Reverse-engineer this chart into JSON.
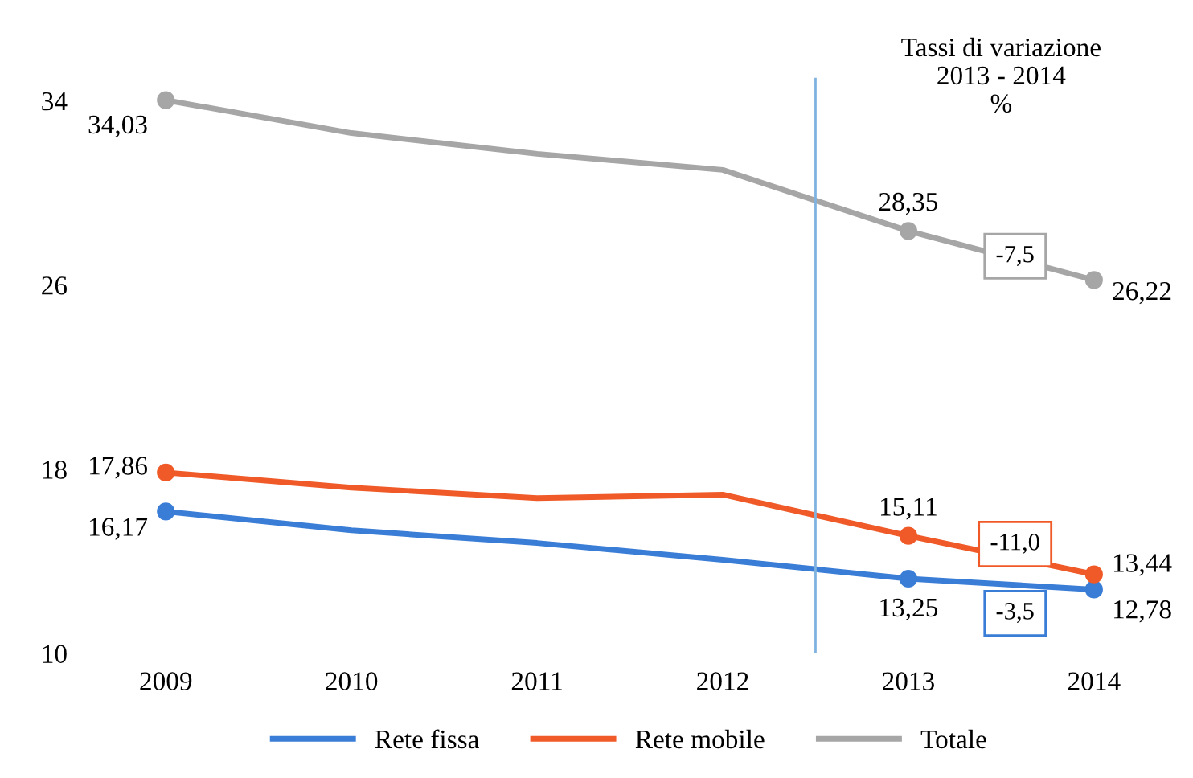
{
  "chart_data": {
    "type": "line",
    "x": [
      2009,
      2010,
      2011,
      2012,
      2013,
      2014
    ],
    "xlim": [
      2009,
      2014
    ],
    "xticks": [
      2009,
      2010,
      2011,
      2012,
      2013,
      2014
    ],
    "ylim": [
      10,
      35
    ],
    "yticks": [
      10,
      18,
      26,
      34
    ],
    "series": [
      {
        "name": "Rete fissa",
        "color": "#3a7dd6",
        "values": [
          16.17,
          15.35,
          14.8,
          14.07,
          13.25,
          12.78
        ],
        "value_labels": [
          "16,17",
          null,
          null,
          null,
          "13,25",
          "12,78"
        ]
      },
      {
        "name": "Rete mobile",
        "color": "#f05a28",
        "values": [
          17.86,
          17.2,
          16.75,
          16.9,
          15.11,
          13.44
        ],
        "value_labels": [
          "17,86",
          null,
          null,
          null,
          "15,11",
          "13,44"
        ]
      },
      {
        "name": "Totale",
        "color": "#a6a6a6",
        "values": [
          34.03,
          32.6,
          31.7,
          31.0,
          28.35,
          26.22
        ],
        "value_labels": [
          "34,03",
          null,
          null,
          null,
          "28,35",
          "26,22"
        ]
      }
    ],
    "marker": "circle",
    "ref_lines": [
      {
        "axis": "x",
        "value": 2012.5,
        "color": "#7fb2df"
      }
    ],
    "annotations": [
      "Tassi di variazione\n2013 - 2014\n%",
      "-3,5",
      "-11,0",
      "-7,5"
    ],
    "legend": "bottom",
    "grid": false
  }
}
